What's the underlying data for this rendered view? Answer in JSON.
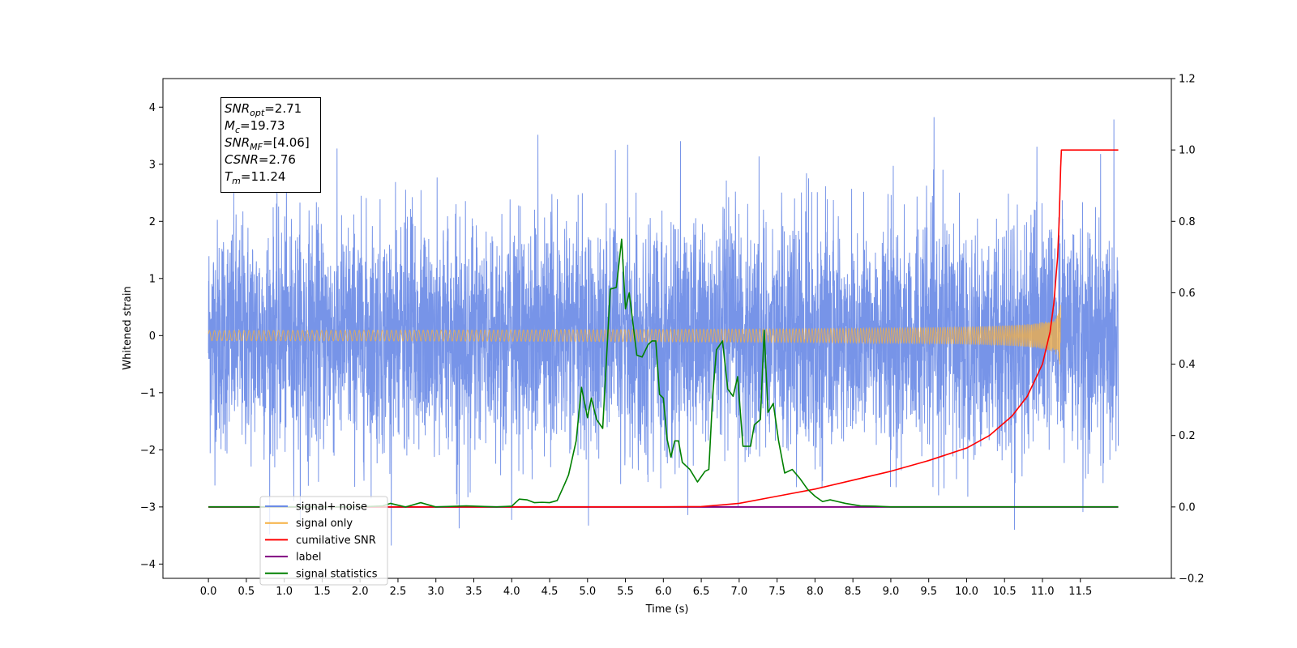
{
  "chart_data": {
    "type": "line",
    "xlabel": "Time (s)",
    "ylabel": "Whitened strain",
    "xlim": [
      -0.6,
      12.7
    ],
    "ylim": [
      -4.25,
      4.5
    ],
    "y2lim": [
      -0.2,
      1.2
    ],
    "xticks": [
      "0.0",
      "0.5",
      "1.0",
      "1.5",
      "2.0",
      "2.5",
      "3.0",
      "3.5",
      "4.0",
      "4.5",
      "5.0",
      "5.5",
      "6.0",
      "6.5",
      "7.0",
      "7.5",
      "8.0",
      "8.5",
      "9.0",
      "9.5",
      "10.0",
      "10.5",
      "11.0",
      "11.5"
    ],
    "yticks": [
      "−4",
      "−3",
      "−2",
      "−1",
      "0",
      "1",
      "2",
      "3",
      "4"
    ],
    "y2ticks": [
      "−0.2",
      "0.0",
      "0.2",
      "0.4",
      "0.6",
      "0.8",
      "1.0",
      "1.2"
    ],
    "grid": false,
    "legend_position": "bottom-left",
    "annotation": {
      "snr_opt": {
        "sym": "SNR",
        "sub": "opt",
        "value": "=2.71"
      },
      "mc": {
        "sym": "M",
        "sub": "c",
        "value": "=19.73"
      },
      "snr_mf": {
        "sym": "SNR",
        "sub": "MF",
        "value": "=[4.06]"
      },
      "csnr": {
        "sym": "CSNR",
        "value": "=2.76"
      },
      "tm": {
        "sym": "T",
        "sub": "m",
        "value": "=11.24"
      }
    },
    "series": [
      {
        "name": "signal+ noise",
        "color": "#6b8be6",
        "axis": "left",
        "noise_envelope": {
          "duration": 12.0,
          "sigma": 1.0,
          "peak_max": 4.1,
          "peak_min": -3.8
        }
      },
      {
        "name": "signal only",
        "color": "#f5b041",
        "axis": "left",
        "chirp": {
          "merger_time": 11.24,
          "peak_amplitude": 0.65,
          "start": 0.0,
          "end": 11.24
        }
      },
      {
        "name": "cumilative SNR",
        "color": "#ff0000",
        "axis": "right",
        "x": [
          0.0,
          6.0,
          6.5,
          7.0,
          7.5,
          8.0,
          8.5,
          9.0,
          9.5,
          10.0,
          10.3,
          10.6,
          10.8,
          11.0,
          11.1,
          11.15,
          11.2,
          11.22,
          11.24,
          11.25,
          12.0
        ],
        "y": [
          0.0,
          0.0,
          0.001,
          0.01,
          0.03,
          0.05,
          0.075,
          0.1,
          0.13,
          0.165,
          0.2,
          0.255,
          0.31,
          0.4,
          0.49,
          0.57,
          0.7,
          0.8,
          0.95,
          1.0,
          1.0
        ]
      },
      {
        "name": "label",
        "color": "#800080",
        "axis": "right",
        "x": [
          0.0,
          12.0
        ],
        "y": [
          0.0,
          0.0
        ]
      },
      {
        "name": "signal statistics",
        "color": "#008000",
        "axis": "right",
        "x": [
          0.0,
          2.0,
          2.3,
          2.4,
          2.6,
          2.8,
          3.0,
          3.4,
          3.8,
          4.0,
          4.1,
          4.2,
          4.3,
          4.4,
          4.5,
          4.6,
          4.7,
          4.75,
          4.85,
          4.92,
          5.0,
          5.05,
          5.12,
          5.2,
          5.3,
          5.38,
          5.45,
          5.5,
          5.55,
          5.65,
          5.72,
          5.8,
          5.85,
          5.9,
          5.95,
          6.0,
          6.05,
          6.1,
          6.15,
          6.2,
          6.25,
          6.35,
          6.45,
          6.55,
          6.6,
          6.65,
          6.7,
          6.78,
          6.85,
          6.92,
          6.98,
          7.05,
          7.15,
          7.2,
          7.28,
          7.33,
          7.38,
          7.45,
          7.52,
          7.6,
          7.7,
          7.8,
          7.9,
          8.0,
          8.1,
          8.2,
          8.3,
          8.4,
          8.6,
          8.8,
          9.0,
          12.0
        ],
        "y": [
          0.0,
          0.0,
          0.003,
          0.01,
          0.0,
          0.012,
          0.0,
          0.003,
          0.0,
          0.002,
          0.022,
          0.02,
          0.012,
          0.013,
          0.012,
          0.018,
          0.065,
          0.09,
          0.185,
          0.335,
          0.25,
          0.305,
          0.245,
          0.22,
          0.61,
          0.615,
          0.75,
          0.555,
          0.6,
          0.425,
          0.42,
          0.455,
          0.465,
          0.465,
          0.315,
          0.305,
          0.19,
          0.14,
          0.185,
          0.185,
          0.125,
          0.105,
          0.07,
          0.1,
          0.105,
          0.31,
          0.44,
          0.465,
          0.33,
          0.31,
          0.365,
          0.17,
          0.17,
          0.23,
          0.245,
          0.495,
          0.265,
          0.29,
          0.185,
          0.095,
          0.105,
          0.08,
          0.05,
          0.03,
          0.015,
          0.02,
          0.015,
          0.01,
          0.003,
          0.002,
          0.0,
          0.0
        ]
      }
    ]
  }
}
